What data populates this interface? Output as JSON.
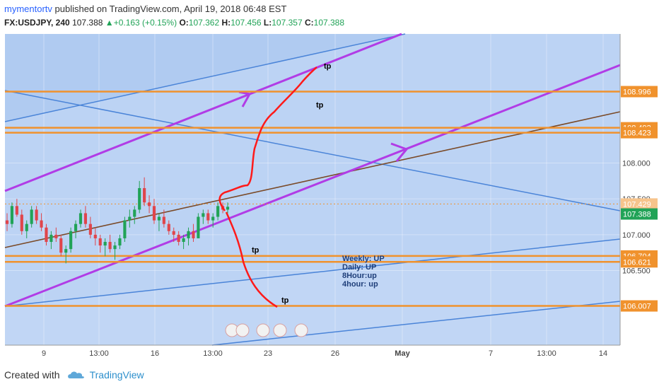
{
  "header": {
    "user": "mymentortv",
    "published_text": "published on TradingView.com, April 19, 2018 06:48 EST",
    "symbol": "FX:USDJPY, 240",
    "last": "107.388",
    "change": "+0.163 (+0.15%)",
    "o_label": "O:",
    "o_value": "107.362",
    "h_label": "H:",
    "h_value": "107.456",
    "l_label": "L:",
    "l_value": "107.357",
    "c_label": "C:",
    "c_value": "107.388"
  },
  "footer": {
    "created_with": "Created with",
    "brand": "TradingView"
  },
  "colors": {
    "background": "#bcd3f4",
    "channel_fill": "#a9c6ef",
    "candle_up": "#21a357",
    "candle_down": "#e0454b",
    "support_resistance": "#f0922d",
    "channel_magenta": "#b13ce6",
    "trend_blue": "#4a84d8",
    "trend_brown": "#7a4a28",
    "forecast_red": "#ff1a1a",
    "current_price": "#21a357"
  },
  "chart_data": {
    "type": "candlestick",
    "symbol": "FX:USDJPY",
    "interval": "240",
    "y_range": [
      105.46,
      109.8
    ],
    "y_ticks": [
      "108.000",
      "107.500",
      "107.000",
      "106.500"
    ],
    "x_ticks": [
      "9",
      "13:00",
      "16",
      "13:00",
      "23",
      "26",
      "May",
      "7",
      "13:00",
      "14"
    ],
    "horizontal_levels": [
      {
        "label": "108.996",
        "value": 108.996
      },
      {
        "label": "108.492",
        "value": 108.492
      },
      {
        "label": "108.423",
        "value": 108.423
      },
      {
        "label": "107.429",
        "value": 107.429
      },
      {
        "label": "106.704",
        "value": 106.704
      },
      {
        "label": "106.621",
        "value": 106.621
      },
      {
        "label": "106.007",
        "value": 106.007
      }
    ],
    "current_price": {
      "label": "107.388",
      "value": 107.388
    },
    "annotations": [
      "tp",
      "tp",
      "tp",
      "tp"
    ],
    "trend_note": [
      "Weekly: UP",
      "Daily: UP",
      "8Hour:up",
      "4hour: up"
    ],
    "candles_ohlc": [
      [
        107.2,
        107.3,
        107.05,
        107.15
      ],
      [
        107.15,
        107.45,
        107.1,
        107.4
      ],
      [
        107.4,
        107.5,
        107.25,
        107.28
      ],
      [
        107.28,
        107.35,
        107.0,
        107.05
      ],
      [
        107.05,
        107.2,
        106.95,
        107.15
      ],
      [
        107.15,
        107.4,
        107.1,
        107.35
      ],
      [
        107.35,
        107.4,
        107.15,
        107.2
      ],
      [
        107.2,
        107.3,
        107.05,
        107.1
      ],
      [
        107.1,
        107.15,
        106.85,
        106.9
      ],
      [
        106.9,
        107.05,
        106.8,
        107.0
      ],
      [
        107.0,
        107.1,
        106.9,
        106.95
      ],
      [
        106.95,
        107.0,
        106.7,
        106.75
      ],
      [
        106.75,
        106.85,
        106.6,
        106.8
      ],
      [
        106.8,
        107.1,
        106.75,
        107.05
      ],
      [
        107.05,
        107.2,
        106.95,
        107.15
      ],
      [
        107.15,
        107.35,
        107.1,
        107.3
      ],
      [
        107.3,
        107.4,
        107.1,
        107.15
      ],
      [
        107.15,
        107.25,
        106.95,
        107.0
      ],
      [
        107.0,
        107.1,
        106.85,
        106.95
      ],
      [
        106.95,
        107.0,
        106.75,
        106.85
      ],
      [
        106.85,
        106.95,
        106.7,
        106.9
      ],
      [
        106.9,
        107.0,
        106.75,
        106.8
      ],
      [
        106.8,
        106.9,
        106.65,
        106.85
      ],
      [
        106.85,
        107.0,
        106.8,
        106.95
      ],
      [
        106.95,
        107.25,
        106.9,
        107.2
      ],
      [
        107.2,
        107.35,
        107.1,
        107.25
      ],
      [
        107.25,
        107.4,
        107.15,
        107.35
      ],
      [
        107.35,
        107.75,
        107.3,
        107.65
      ],
      [
        107.65,
        107.8,
        107.4,
        107.45
      ],
      [
        107.45,
        107.55,
        107.3,
        107.4
      ],
      [
        107.4,
        107.5,
        107.15,
        107.2
      ],
      [
        107.2,
        107.3,
        107.05,
        107.25
      ],
      [
        107.25,
        107.35,
        107.1,
        107.15
      ],
      [
        107.15,
        107.2,
        107.0,
        107.05
      ],
      [
        107.05,
        107.1,
        106.9,
        107.0
      ],
      [
        107.0,
        107.05,
        106.85,
        106.9
      ],
      [
        106.9,
        107.0,
        106.8,
        106.95
      ],
      [
        106.95,
        107.1,
        106.85,
        107.05
      ],
      [
        107.05,
        107.15,
        106.9,
        106.95
      ],
      [
        106.95,
        107.3,
        106.95,
        107.25
      ],
      [
        107.25,
        107.35,
        107.15,
        107.3
      ],
      [
        107.3,
        107.35,
        107.15,
        107.2
      ],
      [
        107.2,
        107.3,
        107.1,
        107.25
      ],
      [
        107.25,
        107.45,
        107.2,
        107.4
      ],
      [
        107.4,
        107.45,
        107.3,
        107.35
      ],
      [
        107.35,
        107.45,
        107.3,
        107.39
      ]
    ]
  }
}
